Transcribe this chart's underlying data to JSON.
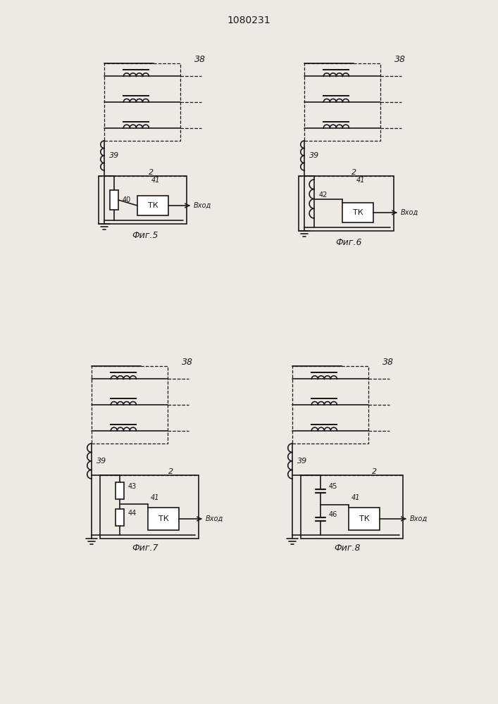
{
  "title": "1080231",
  "bg_color": "#ede9e3",
  "line_color": "#1a1a1a",
  "fig_captions": [
    "Фиг.5",
    "Фиг.6",
    "Фиг.7",
    "Фиг.8"
  ]
}
